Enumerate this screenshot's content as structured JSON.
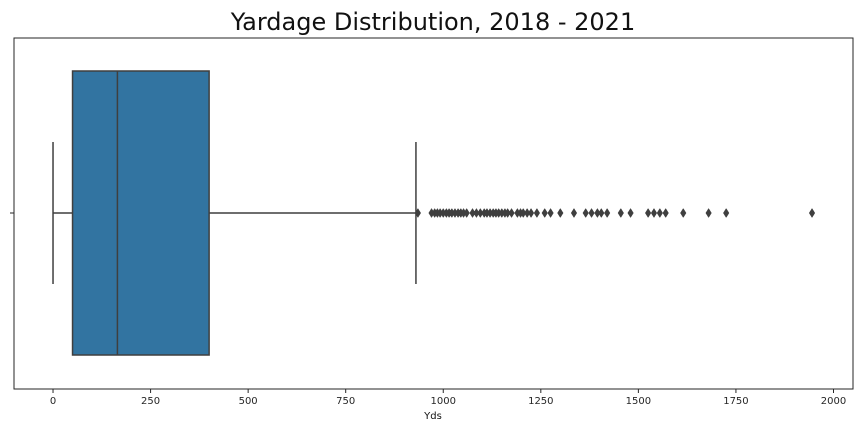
{
  "chart_data": {
    "type": "box",
    "title": "Yardage Distribution, 2018 - 2021",
    "xlabel": "Yds",
    "ylabel": "",
    "xlim": [
      -100,
      2050
    ],
    "x_ticks": [
      0,
      250,
      500,
      750,
      1000,
      1250,
      1500,
      1750,
      2000
    ],
    "orientation": "horizontal",
    "grid": false,
    "box": {
      "whisker_low": 0,
      "q1": 50,
      "median": 165,
      "q3": 400,
      "whisker_high": 930,
      "color": "#3274a1",
      "line_color": "#3f3f3f"
    },
    "outliers": [
      935,
      970,
      978,
      985,
      992,
      1000,
      1008,
      1015,
      1022,
      1030,
      1038,
      1045,
      1052,
      1060,
      1075,
      1085,
      1095,
      1105,
      1112,
      1120,
      1128,
      1135,
      1142,
      1150,
      1158,
      1165,
      1175,
      1190,
      1198,
      1205,
      1215,
      1225,
      1240,
      1260,
      1275,
      1300,
      1335,
      1365,
      1380,
      1395,
      1405,
      1420,
      1455,
      1480,
      1525,
      1540,
      1555,
      1570,
      1615,
      1680,
      1725,
      1945
    ]
  }
}
